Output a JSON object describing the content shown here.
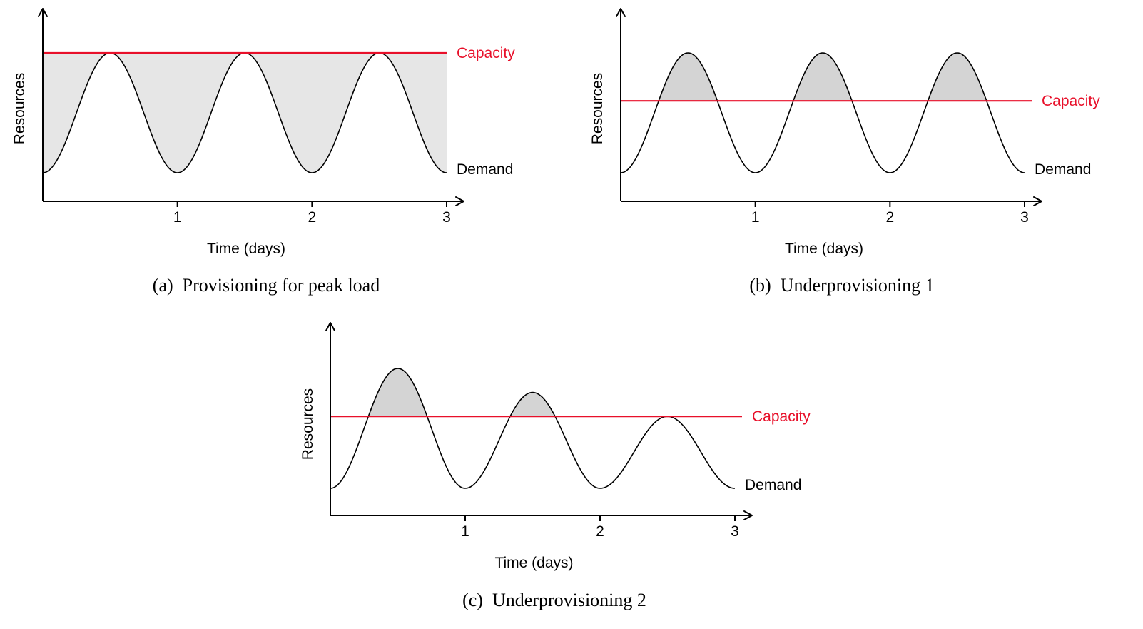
{
  "chart_data": [
    {
      "type": "line",
      "caption": "(a)  Provisioning for peak load",
      "xlabel": "Time (days)",
      "ylabel": "Resources",
      "xticks": [
        "1",
        "2",
        "3"
      ],
      "xlim": [
        0,
        3
      ],
      "ylim": [
        0,
        1.25
      ],
      "series": [
        {
          "name": "Demand",
          "x": [
            0,
            0.5,
            1,
            1.5,
            2,
            2.5,
            3
          ],
          "y": [
            0.2,
            1.0,
            0.2,
            1.0,
            0.2,
            1.0,
            0.2
          ]
        },
        {
          "name": "Capacity",
          "x": [
            0,
            3
          ],
          "y": [
            1.0,
            1.0
          ]
        }
      ],
      "shaded_region": "between demand and capacity (unused resources)",
      "colors": {
        "capacity": "#e8102a",
        "demand": "#000000",
        "fill": "#e6e6e6"
      }
    },
    {
      "type": "line",
      "caption": "(b)  Underprovisioning 1",
      "xlabel": "Time (days)",
      "ylabel": "Resources",
      "xticks": [
        "1",
        "2",
        "3"
      ],
      "xlim": [
        0,
        3
      ],
      "ylim": [
        0,
        1.25
      ],
      "series": [
        {
          "name": "Demand",
          "x": [
            0,
            0.5,
            1,
            1.5,
            2,
            2.5,
            3
          ],
          "y": [
            0.2,
            1.0,
            0.2,
            1.0,
            0.2,
            1.0,
            0.2
          ]
        },
        {
          "name": "Capacity",
          "x": [
            0,
            3
          ],
          "y": [
            0.68,
            0.68
          ]
        }
      ],
      "shaded_region": "demand above capacity",
      "colors": {
        "capacity": "#e8102a",
        "demand": "#000000",
        "fill": "#d4d4d4"
      }
    },
    {
      "type": "line",
      "caption": "(c)  Underprovisioning 2",
      "xlabel": "Time (days)",
      "ylabel": "Resources",
      "xticks": [
        "1",
        "2",
        "3"
      ],
      "xlim": [
        0,
        3
      ],
      "ylim": [
        0,
        1.25
      ],
      "series": [
        {
          "name": "Demand",
          "x": [
            0,
            0.5,
            1,
            1.5,
            2,
            2.5,
            3
          ],
          "y": [
            0.2,
            1.0,
            0.2,
            0.84,
            0.2,
            0.68,
            0.2
          ]
        },
        {
          "name": "Capacity",
          "x": [
            0,
            3
          ],
          "y": [
            0.68,
            0.68
          ]
        }
      ],
      "shaded_region": "demand above capacity",
      "colors": {
        "capacity": "#e8102a",
        "demand": "#000000",
        "fill": "#d4d4d4"
      }
    }
  ]
}
